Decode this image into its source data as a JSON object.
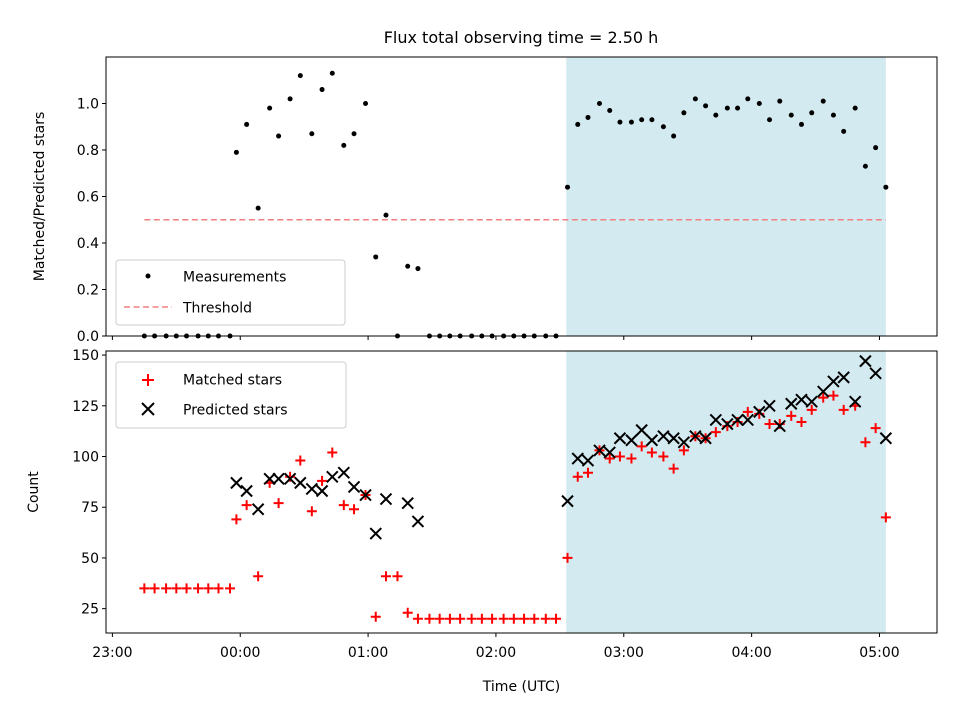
{
  "chart_data": [
    {
      "type": "scatter",
      "title": "Flux total observing time = 2.50 h",
      "xlabel": "",
      "ylabel": "Matched/Predicted stars",
      "x_unit": "hours relative to 00:00 UTC",
      "xlim": [
        -1.05,
        5.45
      ],
      "ylim": [
        0,
        1.2
      ],
      "yticks": [
        0.0,
        0.2,
        0.4,
        0.6,
        0.8,
        1.0
      ],
      "ytick_labels": [
        "0.0",
        "0.2",
        "0.4",
        "0.6",
        "0.8",
        "1.0"
      ],
      "xticks": [
        -1,
        0,
        1,
        2,
        3,
        4,
        5
      ],
      "highlight": {
        "x_start": 2.55,
        "x_end": 5.05,
        "color": "#d3ebf0"
      },
      "threshold": {
        "name": "Threshold",
        "value": 0.5,
        "x_start": -0.75,
        "x_end": 5.05,
        "color": "#f08080"
      },
      "legend": {
        "location": "lower-left",
        "entries": [
          "Measurements",
          "Threshold"
        ]
      },
      "series": [
        {
          "name": "Measurements",
          "color": "#000000",
          "marker": "dot",
          "x": [
            -0.75,
            -0.67,
            -0.58,
            -0.5,
            -0.42,
            -0.33,
            -0.25,
            -0.17,
            -0.08,
            -0.03,
            0.05,
            0.14,
            0.23,
            0.3,
            0.39,
            0.47,
            0.56,
            0.64,
            0.72,
            0.81,
            0.89,
            0.98,
            1.06,
            1.14,
            1.23,
            1.31,
            1.39,
            1.48,
            1.56,
            1.64,
            1.72,
            1.81,
            1.89,
            1.97,
            2.06,
            2.14,
            2.22,
            2.3,
            2.39,
            2.47,
            2.56,
            2.64,
            2.72,
            2.81,
            2.89,
            2.97,
            3.06,
            3.14,
            3.22,
            3.31,
            3.39,
            3.47,
            3.56,
            3.64,
            3.72,
            3.81,
            3.89,
            3.97,
            4.06,
            4.14,
            4.22,
            4.31,
            4.39,
            4.47,
            4.56,
            4.64,
            4.72,
            4.81,
            4.89,
            4.97,
            5.05
          ],
          "y": [
            0,
            0,
            0,
            0,
            0,
            0,
            0,
            0,
            0,
            0.79,
            0.91,
            0.55,
            0.98,
            0.86,
            1.02,
            1.12,
            0.87,
            1.06,
            1.13,
            0.82,
            0.87,
            1.0,
            0.34,
            0.52,
            0,
            0.3,
            0.29,
            0,
            0,
            0,
            0,
            0,
            0,
            0,
            0,
            0,
            0,
            0,
            0,
            0,
            0.64,
            0.91,
            0.94,
            1.0,
            0.97,
            0.92,
            0.92,
            0.93,
            0.93,
            0.9,
            0.86,
            0.96,
            1.02,
            0.99,
            0.95,
            0.98,
            0.98,
            1.02,
            1.0,
            0.93,
            1.01,
            0.95,
            0.91,
            0.96,
            1.01,
            0.95,
            0.88,
            0.98,
            0.73,
            0.81,
            0.64
          ]
        }
      ]
    },
    {
      "type": "scatter",
      "title": "",
      "xlabel": "Time (UTC)",
      "ylabel": "Count",
      "x_unit": "hours relative to 00:00 UTC",
      "xlim": [
        -1.05,
        5.45
      ],
      "ylim": [
        13,
        152
      ],
      "yticks": [
        25,
        50,
        75,
        100,
        125,
        150
      ],
      "ytick_labels": [
        "25",
        "50",
        "75",
        "100",
        "125",
        "150"
      ],
      "xticks": [
        -1,
        0,
        1,
        2,
        3,
        4,
        5
      ],
      "xtick_labels": [
        "23:00",
        "00:00",
        "01:00",
        "02:00",
        "03:00",
        "04:00",
        "05:00"
      ],
      "highlight": {
        "x_start": 2.55,
        "x_end": 5.05,
        "color": "#d3ebf0"
      },
      "legend": {
        "location": "upper-left",
        "entries": [
          "Matched stars",
          "Predicted stars"
        ]
      },
      "series": [
        {
          "name": "Matched stars",
          "color": "#ff0000",
          "marker": "plus",
          "x": [
            -0.75,
            -0.67,
            -0.58,
            -0.5,
            -0.42,
            -0.33,
            -0.25,
            -0.17,
            -0.08,
            -0.03,
            0.05,
            0.14,
            0.23,
            0.3,
            0.39,
            0.47,
            0.56,
            0.64,
            0.72,
            0.81,
            0.89,
            0.98,
            1.06,
            1.14,
            1.23,
            1.31,
            1.39,
            1.48,
            1.56,
            1.64,
            1.72,
            1.81,
            1.89,
            1.97,
            2.06,
            2.14,
            2.22,
            2.3,
            2.39,
            2.47,
            2.56,
            2.64,
            2.72,
            2.81,
            2.89,
            2.97,
            3.06,
            3.14,
            3.22,
            3.31,
            3.39,
            3.47,
            3.56,
            3.64,
            3.72,
            3.81,
            3.89,
            3.97,
            4.06,
            4.14,
            4.22,
            4.31,
            4.39,
            4.47,
            4.56,
            4.64,
            4.72,
            4.81,
            4.89,
            4.97,
            5.05
          ],
          "y": [
            35,
            35,
            35,
            35,
            35,
            35,
            35,
            35,
            35,
            69,
            76,
            41,
            87,
            77,
            90,
            98,
            73,
            88,
            102,
            76,
            74,
            81,
            21,
            41,
            41,
            23,
            20,
            20,
            20,
            20,
            20,
            20,
            20,
            20,
            20,
            20,
            20,
            20,
            20,
            20,
            50,
            90,
            92,
            103,
            99,
            100,
            99,
            105,
            102,
            100,
            94,
            103,
            110,
            109,
            112,
            115,
            117,
            122,
            121,
            116,
            116,
            120,
            117,
            123,
            129,
            130,
            123,
            125,
            107,
            114,
            70
          ]
        },
        {
          "name": "Predicted stars",
          "color": "#000000",
          "marker": "x",
          "x": [
            -0.03,
            0.05,
            0.14,
            0.23,
            0.3,
            0.39,
            0.47,
            0.56,
            0.64,
            0.72,
            0.81,
            0.89,
            0.98,
            1.06,
            1.14,
            1.31,
            1.39,
            2.56,
            2.64,
            2.72,
            2.81,
            2.89,
            2.97,
            3.06,
            3.14,
            3.22,
            3.31,
            3.39,
            3.47,
            3.56,
            3.64,
            3.72,
            3.81,
            3.89,
            3.97,
            4.06,
            4.14,
            4.22,
            4.31,
            4.39,
            4.47,
            4.56,
            4.64,
            4.72,
            4.81,
            4.89,
            4.97,
            5.05
          ],
          "y": [
            87,
            83,
            74,
            89,
            89,
            89,
            87,
            84,
            83,
            90,
            92,
            85,
            81,
            62,
            79,
            77,
            68,
            78,
            99,
            98,
            103,
            102,
            109,
            108,
            113,
            108,
            110,
            109,
            107,
            110,
            109,
            118,
            116,
            118,
            118,
            122,
            125,
            115,
            126,
            128,
            127,
            132,
            137,
            139,
            127,
            147,
            141,
            109
          ]
        }
      ]
    }
  ]
}
